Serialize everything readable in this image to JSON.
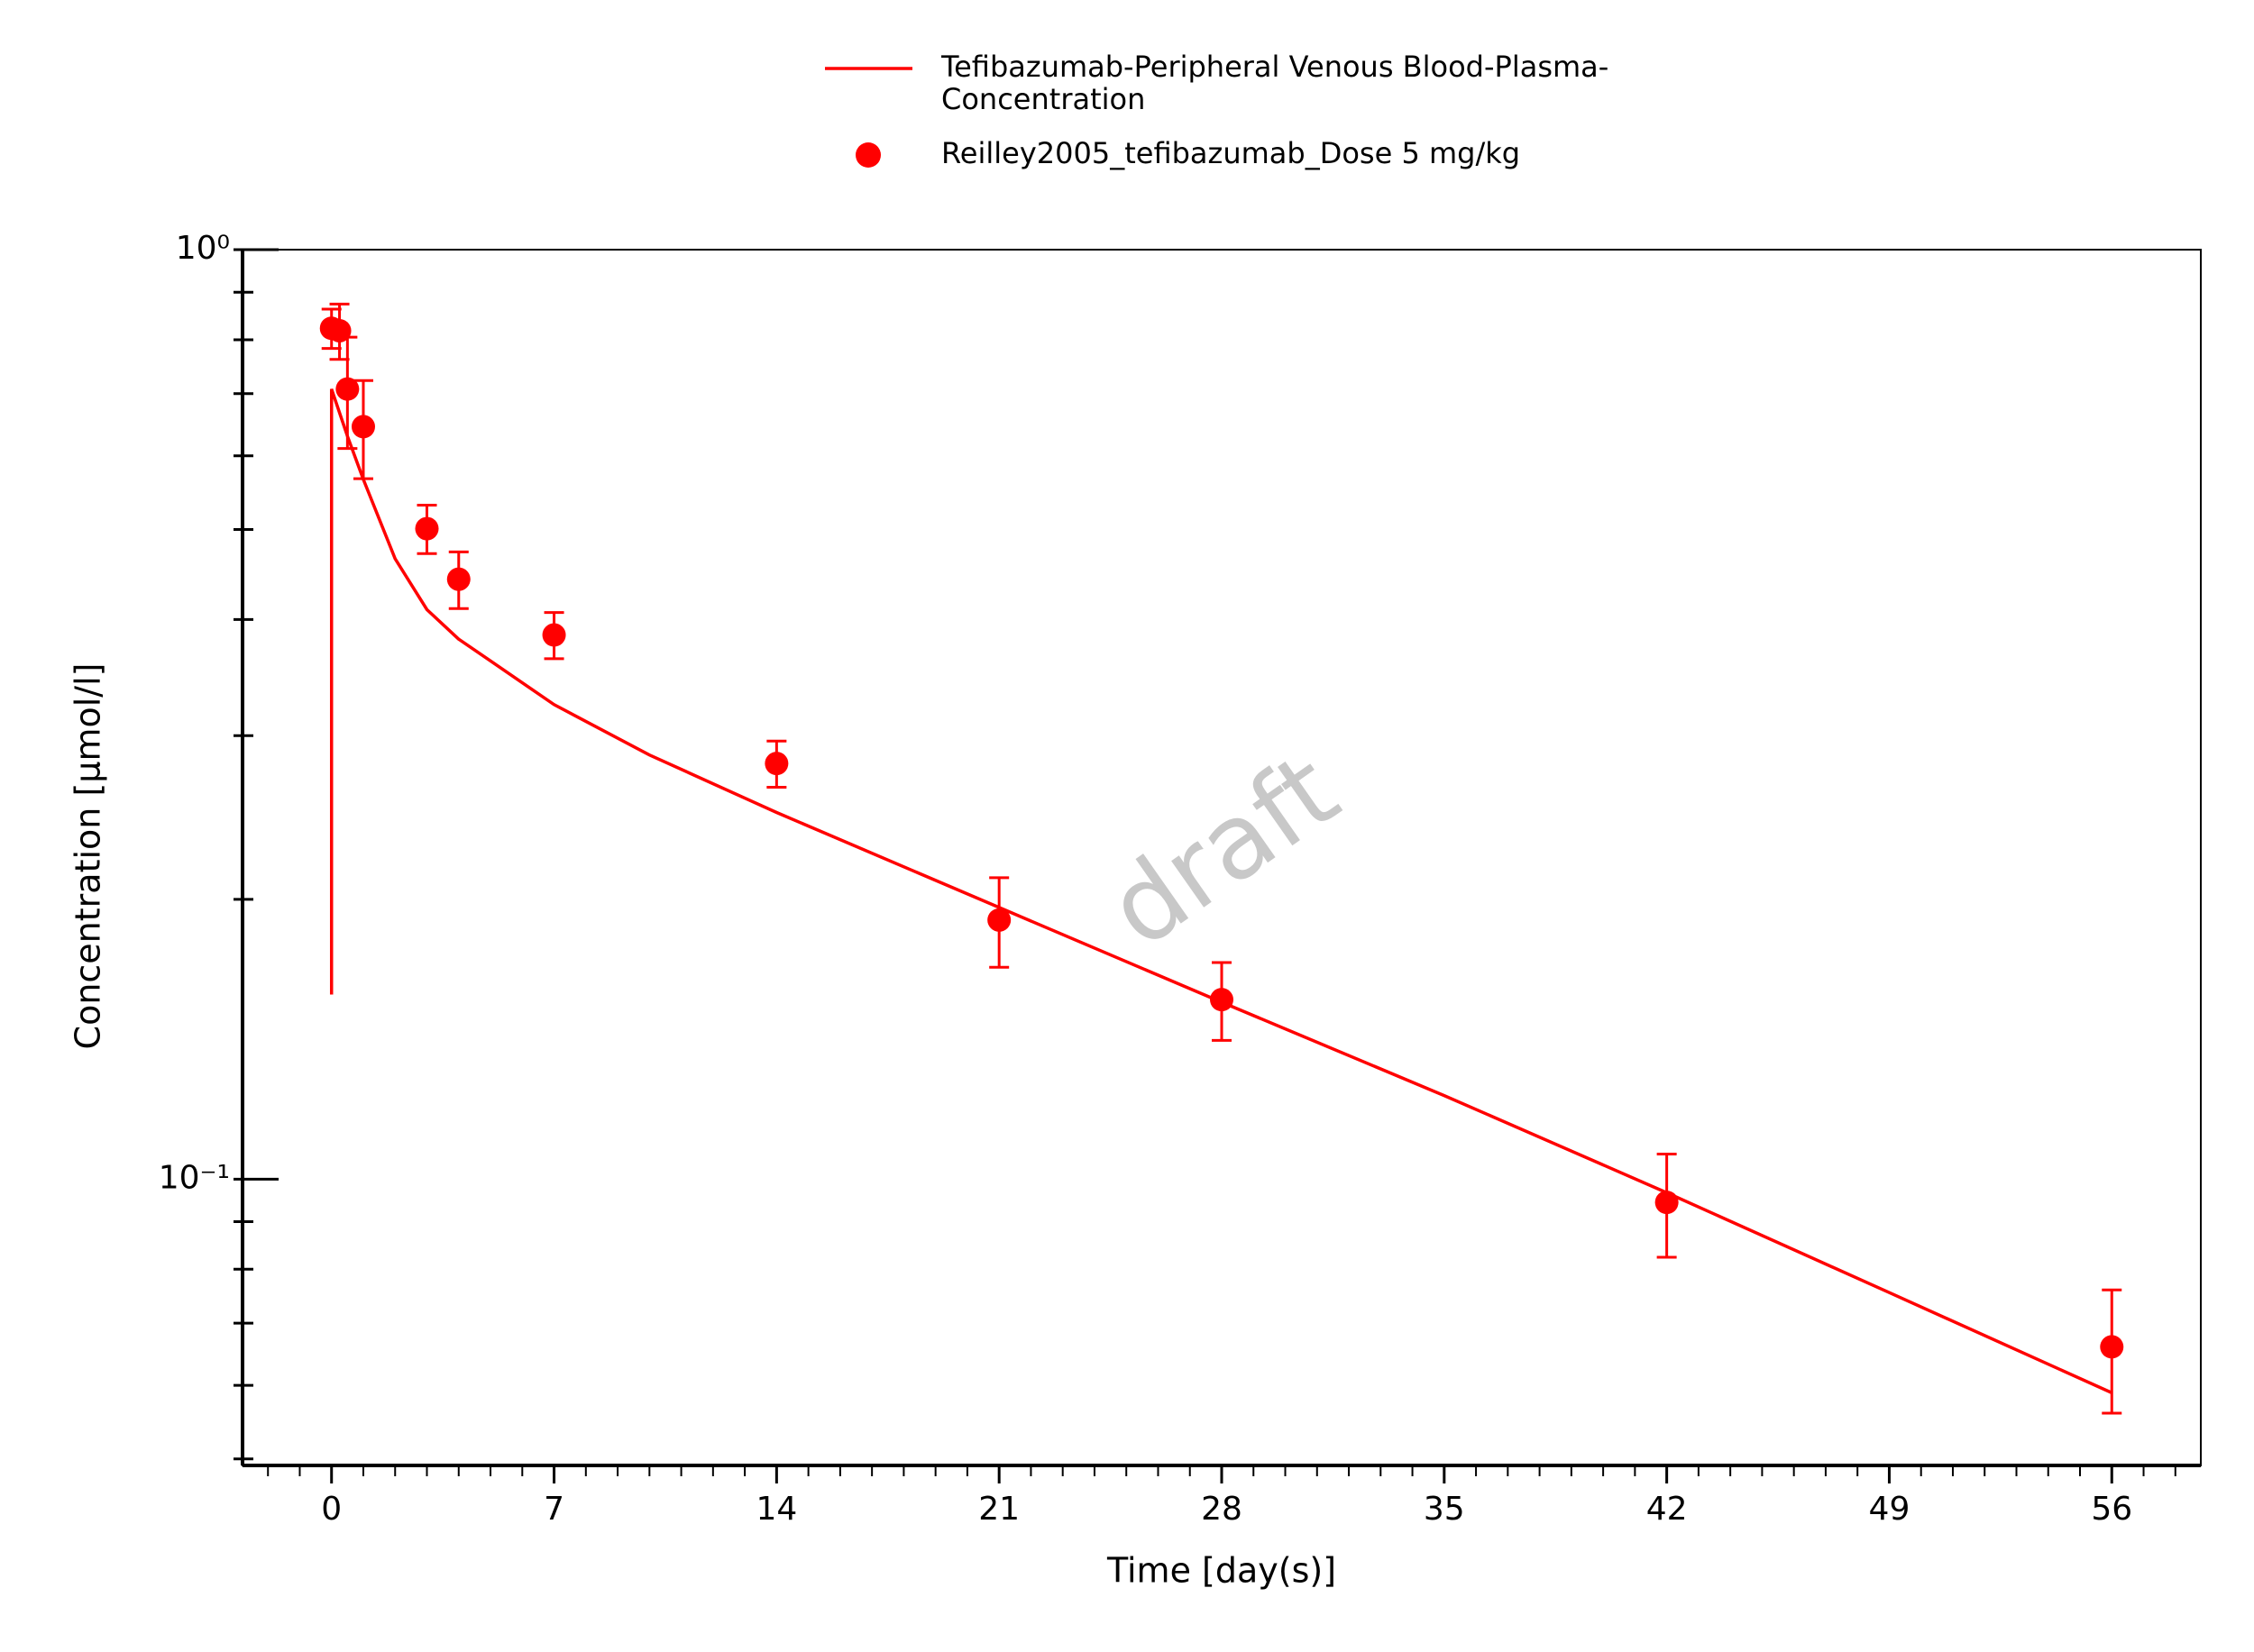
{
  "chart_data": {
    "type": "line",
    "x_label": "Time [day(s)]",
    "y_label": "Concentration [µmol/l]",
    "watermark": "draft",
    "y_log": true,
    "xlim": [
      -2.8,
      58.8
    ],
    "ylim": [
      0.0492,
      1
    ],
    "xticks": [
      0,
      7,
      14,
      21,
      28,
      35,
      42,
      49,
      56
    ],
    "xminor_ticks": [
      -2,
      -1,
      1,
      2,
      3,
      4,
      5,
      6,
      8,
      9,
      10,
      11,
      12,
      13,
      15,
      16,
      17,
      18,
      19,
      20,
      22,
      23,
      24,
      25,
      26,
      27,
      29,
      30,
      31,
      32,
      33,
      34,
      36,
      37,
      38,
      39,
      40,
      41,
      43,
      44,
      45,
      46,
      47,
      48,
      50,
      51,
      52,
      53,
      54,
      55,
      57,
      58
    ],
    "yticks": [
      {
        "value": 1,
        "label": "10⁰"
      },
      {
        "value": 0.1,
        "label": "10⁻¹"
      }
    ],
    "yminor_ticks": [
      0.05,
      0.06,
      0.07,
      0.08,
      0.09,
      0.2,
      0.3,
      0.4,
      0.5,
      0.6,
      0.7,
      0.8,
      0.9
    ],
    "series": [
      {
        "name": "Tefibazumab-Peripheral Venous Blood-Plasma-Concentration",
        "type": "line",
        "color": "#ff0000",
        "x": [
          0,
          0,
          0.5,
          1,
          2,
          3,
          4,
          5,
          7,
          10,
          14,
          21,
          28,
          35,
          42,
          49,
          56
        ],
        "values": [
          0.158,
          0.708,
          0.63,
          0.566,
          0.465,
          0.41,
          0.381,
          0.361,
          0.324,
          0.286,
          0.248,
          0.196,
          0.155,
          0.123,
          0.0967,
          0.0755,
          0.0589
        ]
      },
      {
        "name": "Reilley2005_tefibazumab_Dose 5 mg/kg",
        "type": "scatter",
        "color": "#ff0000",
        "x": [
          0,
          0.25,
          0.5,
          1,
          3,
          4,
          7,
          14,
          21,
          28,
          42,
          56
        ],
        "values": [
          0.823,
          0.818,
          0.708,
          0.645,
          0.501,
          0.442,
          0.385,
          0.28,
          0.19,
          0.156,
          0.0944,
          0.066
        ],
        "errors": [
          0.04,
          0.056,
          0.097,
          0.078,
          0.03,
          0.031,
          0.022,
          0.016,
          0.021,
          0.015,
          0.012,
          0.01
        ]
      }
    ]
  }
}
